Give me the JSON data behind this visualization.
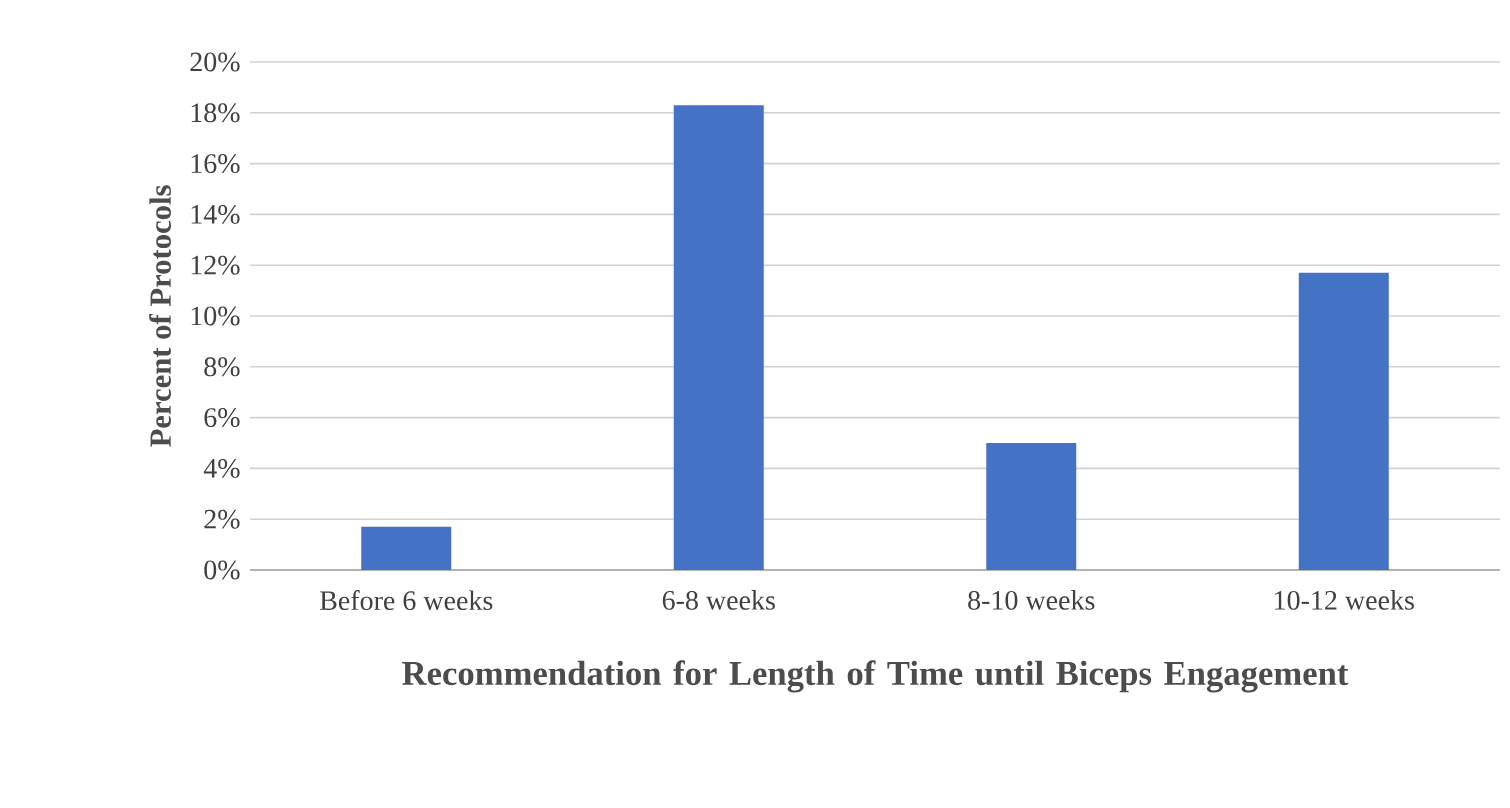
{
  "chart_data": {
    "type": "bar",
    "xlabel": "Recommendation for Length of Time until Biceps Engagement",
    "ylabel": "Percent of Protocols",
    "categories": [
      "Before 6 weeks",
      "6-8 weeks",
      "8-10 weeks",
      "10-12 weeks"
    ],
    "values": [
      1.7,
      18.3,
      5.0,
      11.7
    ],
    "color": "#4472c4",
    "ylim": [
      0,
      20
    ],
    "yticks": [
      {
        "value": 0,
        "label": "0%"
      },
      {
        "value": 2,
        "label": "2%"
      },
      {
        "value": 4,
        "label": "4%"
      },
      {
        "value": 6,
        "label": "6%"
      },
      {
        "value": 8,
        "label": "8%"
      },
      {
        "value": 10,
        "label": "10%"
      },
      {
        "value": 12,
        "label": "12%"
      },
      {
        "value": 14,
        "label": "14%"
      },
      {
        "value": 16,
        "label": "16%"
      },
      {
        "value": 18,
        "label": "18%"
      },
      {
        "value": 20,
        "label": "20%"
      }
    ],
    "grid": "y"
  }
}
